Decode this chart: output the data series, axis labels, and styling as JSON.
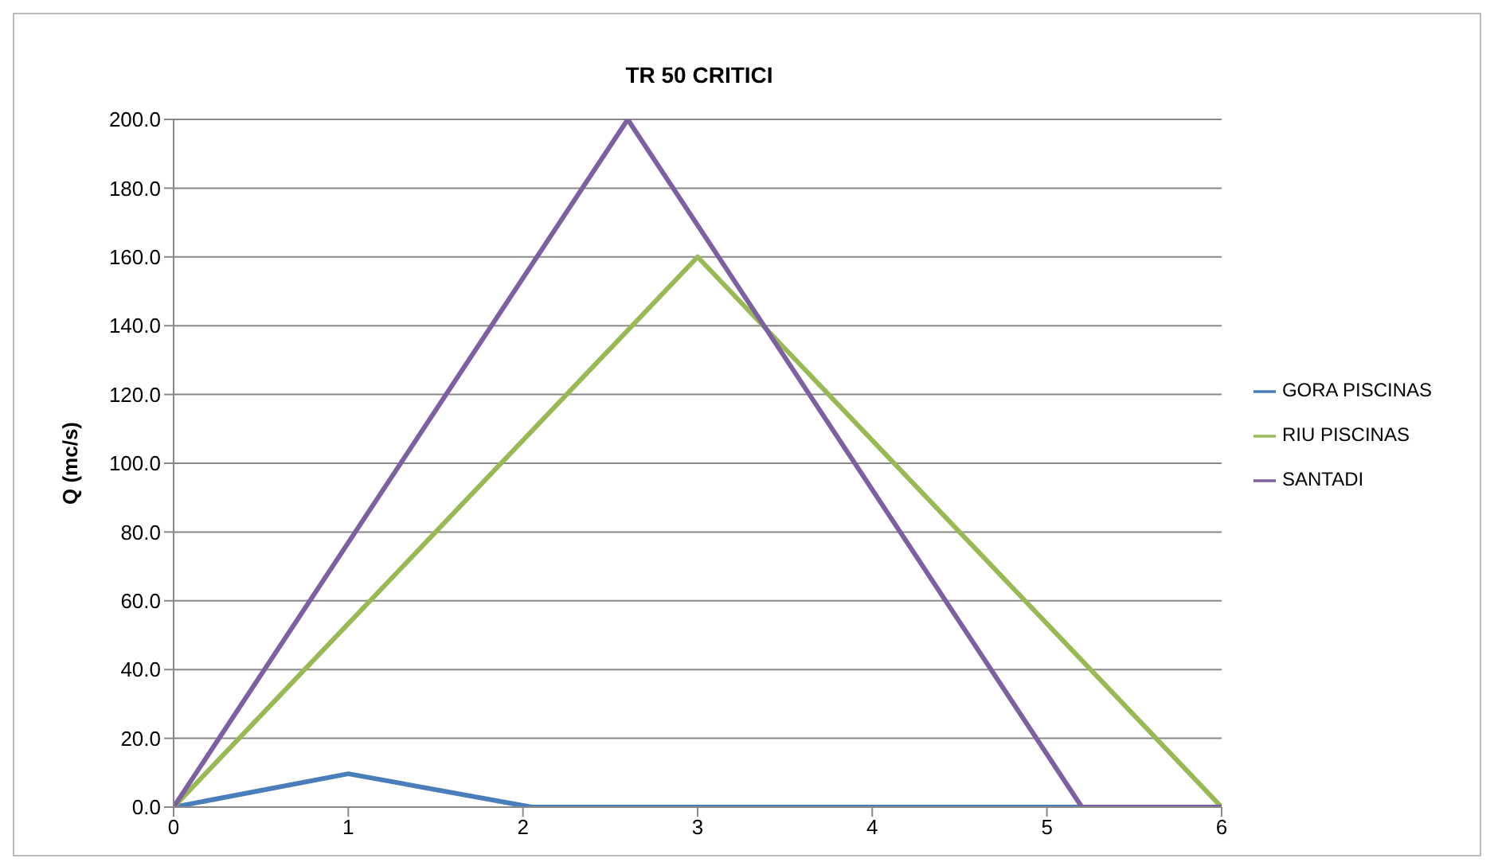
{
  "chart_data": {
    "type": "line",
    "title": "TR 50 CRITICI",
    "ylabel": "Q (mc/s)",
    "xlim": [
      0,
      6
    ],
    "xticks": [
      0,
      1,
      2,
      3,
      4,
      5,
      6
    ],
    "ylim": [
      0,
      200
    ],
    "yticks": [
      {
        "value": 0,
        "label": "0.0"
      },
      {
        "value": 20,
        "label": "20.0"
      },
      {
        "value": 40,
        "label": "40.0"
      },
      {
        "value": 60,
        "label": "60.0"
      },
      {
        "value": 80,
        "label": "80.0"
      },
      {
        "value": 100,
        "label": "100.0"
      },
      {
        "value": 120,
        "label": "120.0"
      },
      {
        "value": 140,
        "label": "140.0"
      },
      {
        "value": 160,
        "label": "160.0"
      },
      {
        "value": 180,
        "label": "180.0"
      },
      {
        "value": 200,
        "label": "200.0"
      }
    ],
    "grid": "y",
    "legend": "right",
    "marker": "none",
    "line_style": "solid",
    "series": [
      {
        "name": "GORA PISCINAS",
        "color": "#4a7ebb",
        "x": [
          0,
          1,
          2.05,
          6
        ],
        "values": [
          0,
          9.7,
          0,
          0
        ]
      },
      {
        "name": "RIU PISCINAS",
        "color": "#98b954",
        "x": [
          0,
          3,
          6
        ],
        "values": [
          0,
          160,
          0
        ]
      },
      {
        "name": "SANTADI",
        "color": "#7d60a0",
        "x": [
          0,
          2.6,
          5.2,
          6
        ],
        "values": [
          0,
          200,
          0,
          0
        ]
      }
    ]
  }
}
